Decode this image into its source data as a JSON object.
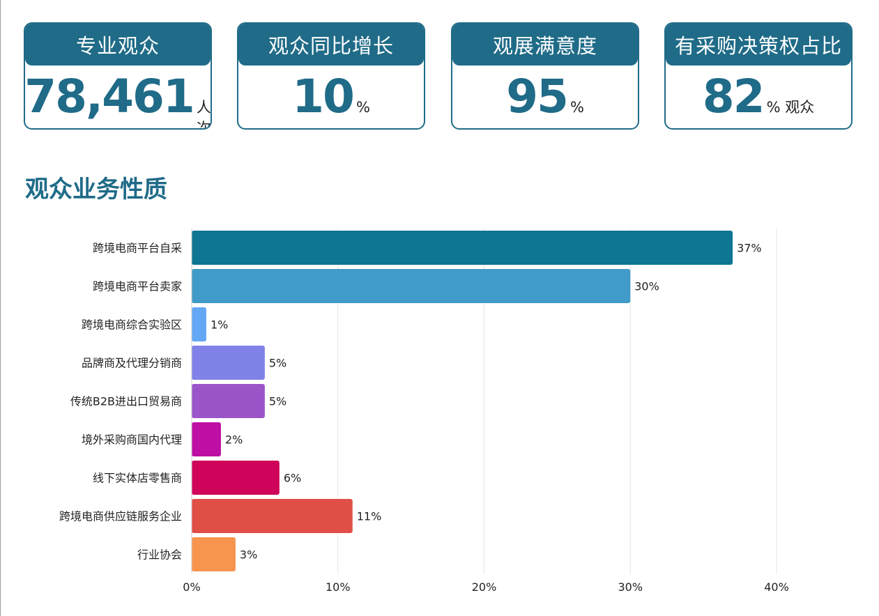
{
  "kpis": [
    {
      "label": "专业观众",
      "value": "78,461",
      "unit": "人次"
    },
    {
      "label": "观众同比增长",
      "value": "10",
      "unit": "%"
    },
    {
      "label": "观展满意度",
      "value": "95",
      "unit": "%"
    },
    {
      "label": "有采购决策权占比",
      "value": "82",
      "unit": "% 观众"
    }
  ],
  "section_title": "观众业务性质",
  "colors": {
    "brand": "#1f6b88",
    "bars": [
      "#0e7592",
      "#409bc8",
      "#64a8f5",
      "#8082e8",
      "#9b55c9",
      "#bd0fa3",
      "#d0045a",
      "#e04f46",
      "#f7944e"
    ],
    "grid": "#e3e3e3"
  },
  "chart_data": {
    "type": "bar",
    "orientation": "horizontal",
    "categories": [
      "跨境电商平台自采",
      "跨境电商平台卖家",
      "跨境电商综合实验区",
      "品牌商及代理分销商",
      "传统B2B进出口贸易商",
      "境外采购商国内代理",
      "线下实体店零售商",
      "跨境电商供应链服务企业",
      "行业协会"
    ],
    "values": [
      37,
      30,
      1,
      5,
      5,
      2,
      6,
      11,
      3
    ],
    "value_labels": [
      "37%",
      "30%",
      "1%",
      "5%",
      "5%",
      "2%",
      "6%",
      "11%",
      "3%"
    ],
    "xlim": [
      0,
      40
    ],
    "xticks": [
      0,
      10,
      20,
      30,
      40
    ],
    "xtick_labels": [
      "0%",
      "10%",
      "20%",
      "30%",
      "40%"
    ],
    "grid": true
  }
}
